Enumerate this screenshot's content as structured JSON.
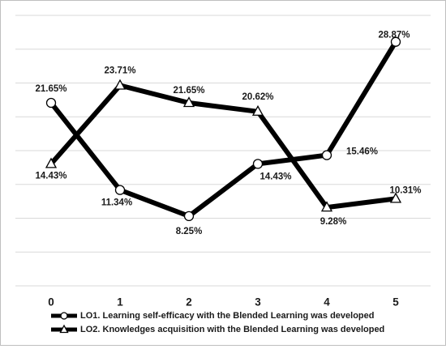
{
  "chart_data": {
    "type": "line",
    "categories": [
      "0",
      "1",
      "2",
      "3",
      "4",
      "5"
    ],
    "x": [
      0,
      1,
      2,
      3,
      4,
      5
    ],
    "ylim": [
      0,
      32
    ],
    "grid": true,
    "legend_position": "bottom",
    "series": [
      {
        "name": "LO1. Learning self-efficacy with the Blended Learning was developed",
        "marker": "circle",
        "values": [
          21.65,
          11.34,
          8.25,
          14.43,
          15.46,
          28.87
        ],
        "labels": [
          "21.65%",
          "11.34%",
          "8.25%",
          "14.43%",
          "15.46%",
          "28.87%"
        ]
      },
      {
        "name": "LO2. Knowledges acquisition with the Blended Learning was developed",
        "marker": "triangle",
        "values": [
          14.43,
          23.71,
          21.65,
          20.62,
          9.28,
          10.31
        ],
        "labels": [
          "14.43%",
          "23.71%",
          "21.65%",
          "20.62%",
          "9.28%",
          "10.31%"
        ]
      }
    ],
    "colors": {
      "line": "#000000",
      "grid": "#d9d9d9",
      "marker_fill": "#ffffff"
    }
  }
}
